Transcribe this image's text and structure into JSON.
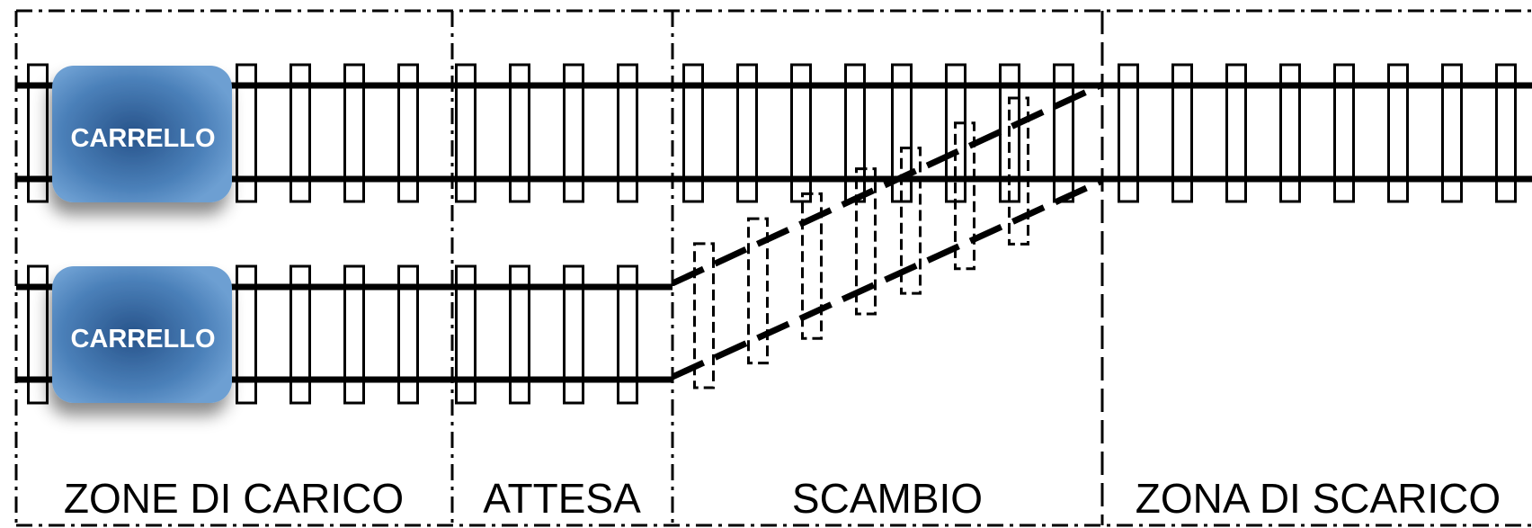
{
  "zones": [
    {
      "id": "loading",
      "label": "ZONE DI CARICO"
    },
    {
      "id": "waiting",
      "label": "ATTESA"
    },
    {
      "id": "switch",
      "label": "SCAMBIO"
    },
    {
      "id": "unloading",
      "label": "ZONA DI SCARICO"
    }
  ],
  "carts": [
    {
      "label": "CARRELLO"
    },
    {
      "label": "CARRELLO"
    }
  ],
  "colors": {
    "line": "#000000",
    "cart_fill": "#4a7fb8",
    "cart_text": "#ffffff"
  }
}
